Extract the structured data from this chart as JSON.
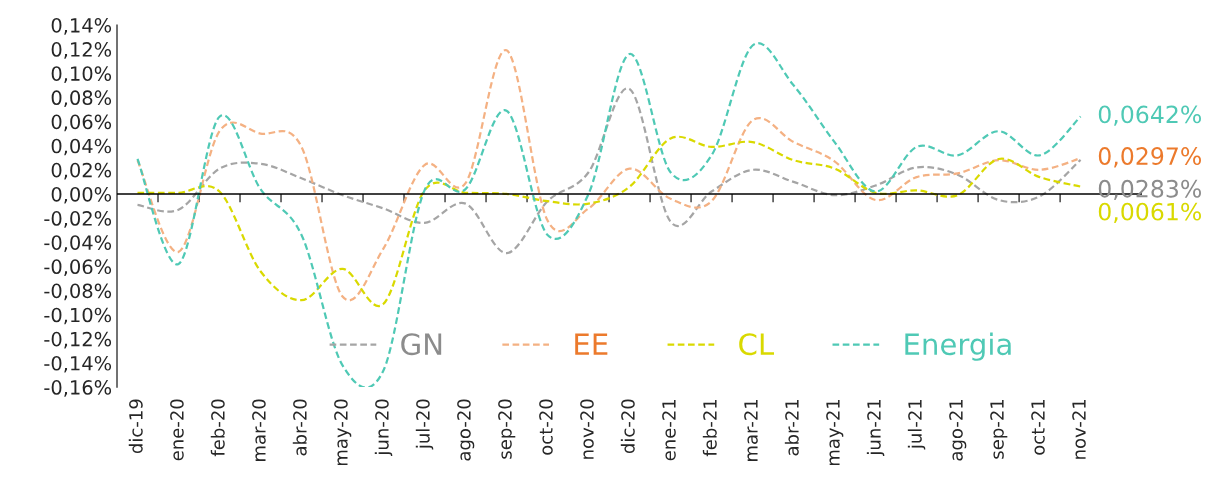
{
  "chart_data": {
    "type": "line",
    "categories": [
      "dic-19",
      "ene-20",
      "feb-20",
      "mar-20",
      "abr-20",
      "may-20",
      "jun-20",
      "jul-20",
      "ago-20",
      "sep-20",
      "oct-20",
      "nov-20",
      "dic-20",
      "ene-21",
      "feb-21",
      "mar-21",
      "abr-21",
      "may-21",
      "jun-21",
      "jul-21",
      "ago-21",
      "sep-21",
      "oct-21",
      "nov-21"
    ],
    "ylim": [
      -0.16,
      0.14
    ],
    "yticks": [
      {
        "value": -0.16,
        "label": "-0,16%"
      },
      {
        "value": -0.14,
        "label": "-0,14%"
      },
      {
        "value": -0.12,
        "label": "-0,12%"
      },
      {
        "value": -0.1,
        "label": "-0,10%"
      },
      {
        "value": -0.08,
        "label": "-0,08%"
      },
      {
        "value": -0.06,
        "label": "-0,06%"
      },
      {
        "value": -0.04,
        "label": "-0,04%"
      },
      {
        "value": -0.02,
        "label": "-0,02%"
      },
      {
        "value": 0,
        "label": "0,00%"
      },
      {
        "value": 0.02,
        "label": "0,02%"
      },
      {
        "value": 0.04,
        "label": "0,04%"
      },
      {
        "value": 0.06,
        "label": "0,06%"
      },
      {
        "value": 0.08,
        "label": "0,08%"
      },
      {
        "value": 0.1,
        "label": "0,10%"
      },
      {
        "value": 0.12,
        "label": "0,12%"
      },
      {
        "value": 0.14,
        "label": "0,14%"
      }
    ],
    "grid": false,
    "ref_lines": [
      {
        "axis": "y",
        "value": 0,
        "color": "#000000",
        "line_style": "solid"
      }
    ],
    "legend": "bottom right",
    "line_style": "dashed",
    "marker": "none",
    "series": [
      {
        "name": "GN",
        "color": "#a5a5a5",
        "values": [
          -0.009,
          -0.013,
          0.021,
          0.025,
          0.013,
          -0.001,
          -0.012,
          -0.024,
          -0.008,
          -0.049,
          -0.006,
          0.018,
          0.087,
          -0.023,
          0.002,
          0.02,
          0.01,
          -0.001,
          0.007,
          0.022,
          0.016,
          -0.005,
          -0.002,
          0.0283
        ],
        "value_labels": [
          null,
          null,
          null,
          null,
          null,
          null,
          null,
          null,
          null,
          null,
          null,
          null,
          null,
          null,
          null,
          null,
          null,
          null,
          null,
          null,
          null,
          null,
          null,
          "0,0283%"
        ]
      },
      {
        "name": "EE",
        "color": "#f4b183",
        "values": [
          0.028,
          -0.048,
          0.052,
          0.05,
          0.039,
          -0.085,
          -0.045,
          0.024,
          0.009,
          0.119,
          -0.022,
          -0.012,
          0.021,
          -0.004,
          -0.006,
          0.061,
          0.043,
          0.027,
          -0.005,
          0.014,
          0.017,
          0.028,
          0.02,
          0.0297
        ],
        "value_labels": [
          null,
          null,
          null,
          null,
          null,
          null,
          null,
          null,
          null,
          null,
          null,
          null,
          null,
          null,
          null,
          null,
          null,
          null,
          null,
          null,
          null,
          null,
          null,
          "0,0297%"
        ]
      },
      {
        "name": "CL",
        "color": "#d9d900",
        "values": [
          0.001,
          0.001,
          0.002,
          -0.064,
          -0.088,
          -0.062,
          -0.091,
          0.003,
          0.001,
          0.0,
          -0.006,
          -0.008,
          0.006,
          0.046,
          0.039,
          0.043,
          0.028,
          0.021,
          0.001,
          0.003,
          -0.001,
          0.029,
          0.014,
          0.0061
        ],
        "value_labels": [
          null,
          null,
          null,
          null,
          null,
          null,
          null,
          null,
          null,
          null,
          null,
          null,
          null,
          null,
          null,
          null,
          null,
          null,
          null,
          null,
          null,
          null,
          null,
          "0,0061%"
        ]
      },
      {
        "name": "Energia",
        "color": "#4fc9b5",
        "values": [
          0.029,
          -0.058,
          0.064,
          0.004,
          -0.034,
          -0.142,
          -0.146,
          0.003,
          0.004,
          0.069,
          -0.034,
          0.0,
          0.116,
          0.018,
          0.032,
          0.123,
          0.09,
          0.043,
          0.002,
          0.039,
          0.032,
          0.052,
          0.032,
          0.0642
        ],
        "value_labels": [
          null,
          null,
          null,
          null,
          null,
          null,
          null,
          null,
          null,
          null,
          null,
          null,
          null,
          null,
          null,
          null,
          null,
          null,
          null,
          null,
          null,
          null,
          null,
          "0,0642%"
        ]
      }
    ]
  }
}
